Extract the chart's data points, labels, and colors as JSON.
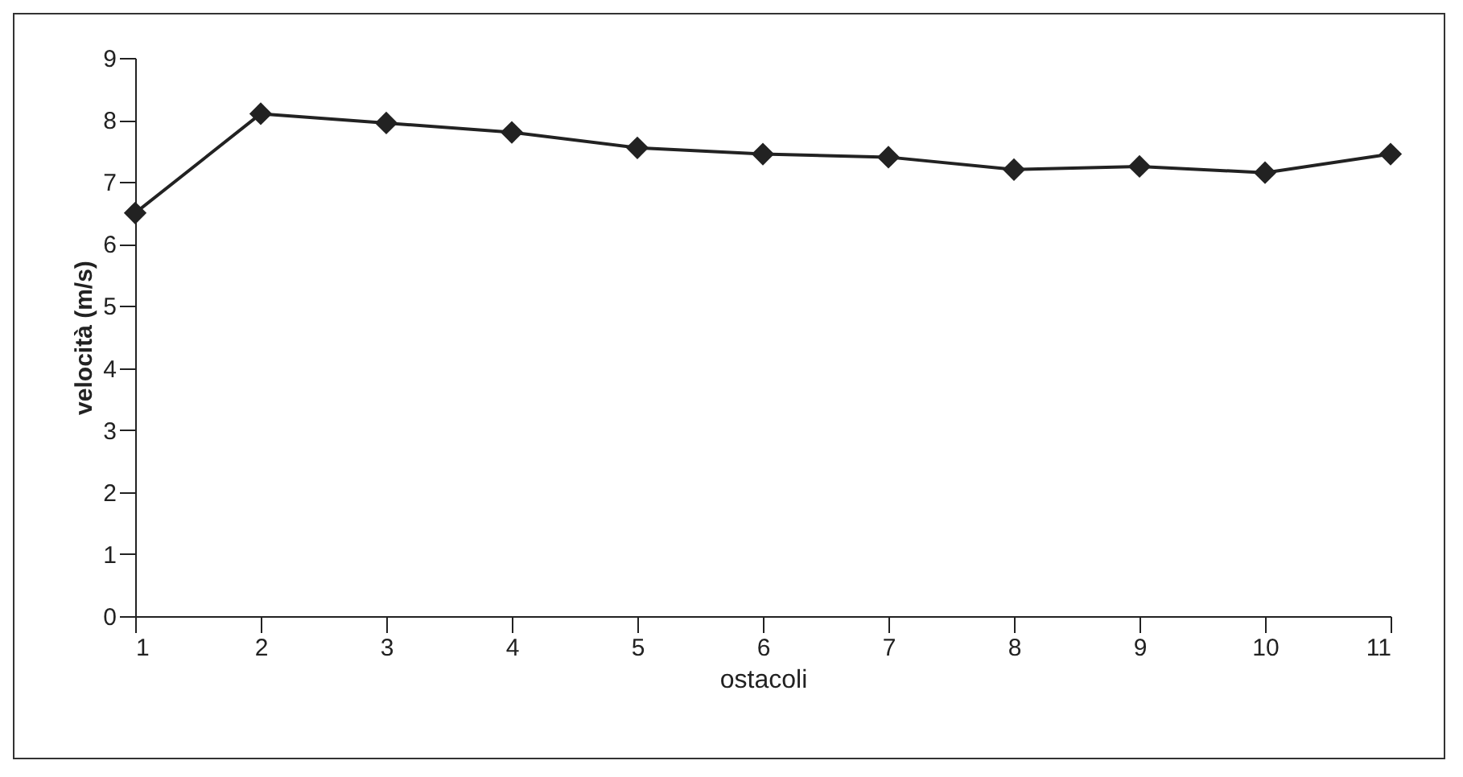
{
  "chart_data": {
    "type": "line",
    "xlabel": "ostacoli",
    "ylabel": "velocità (m/s)",
    "x": [
      1,
      2,
      3,
      4,
      5,
      6,
      7,
      8,
      9,
      10,
      11
    ],
    "series": [
      {
        "color": "#222222",
        "values": [
          6.5,
          8.1,
          7.95,
          7.8,
          7.55,
          7.45,
          7.4,
          7.2,
          7.25,
          7.15,
          7.45
        ]
      }
    ],
    "xlim": [
      1,
      11
    ],
    "xticks": [
      1,
      2,
      3,
      4,
      5,
      6,
      7,
      8,
      9,
      10,
      11
    ],
    "ylim": [
      0,
      9
    ],
    "yticks": [
      0,
      1,
      2,
      3,
      4,
      5,
      6,
      7,
      8,
      9
    ],
    "marker": "diamond",
    "line_style": "solid",
    "grid": false
  }
}
